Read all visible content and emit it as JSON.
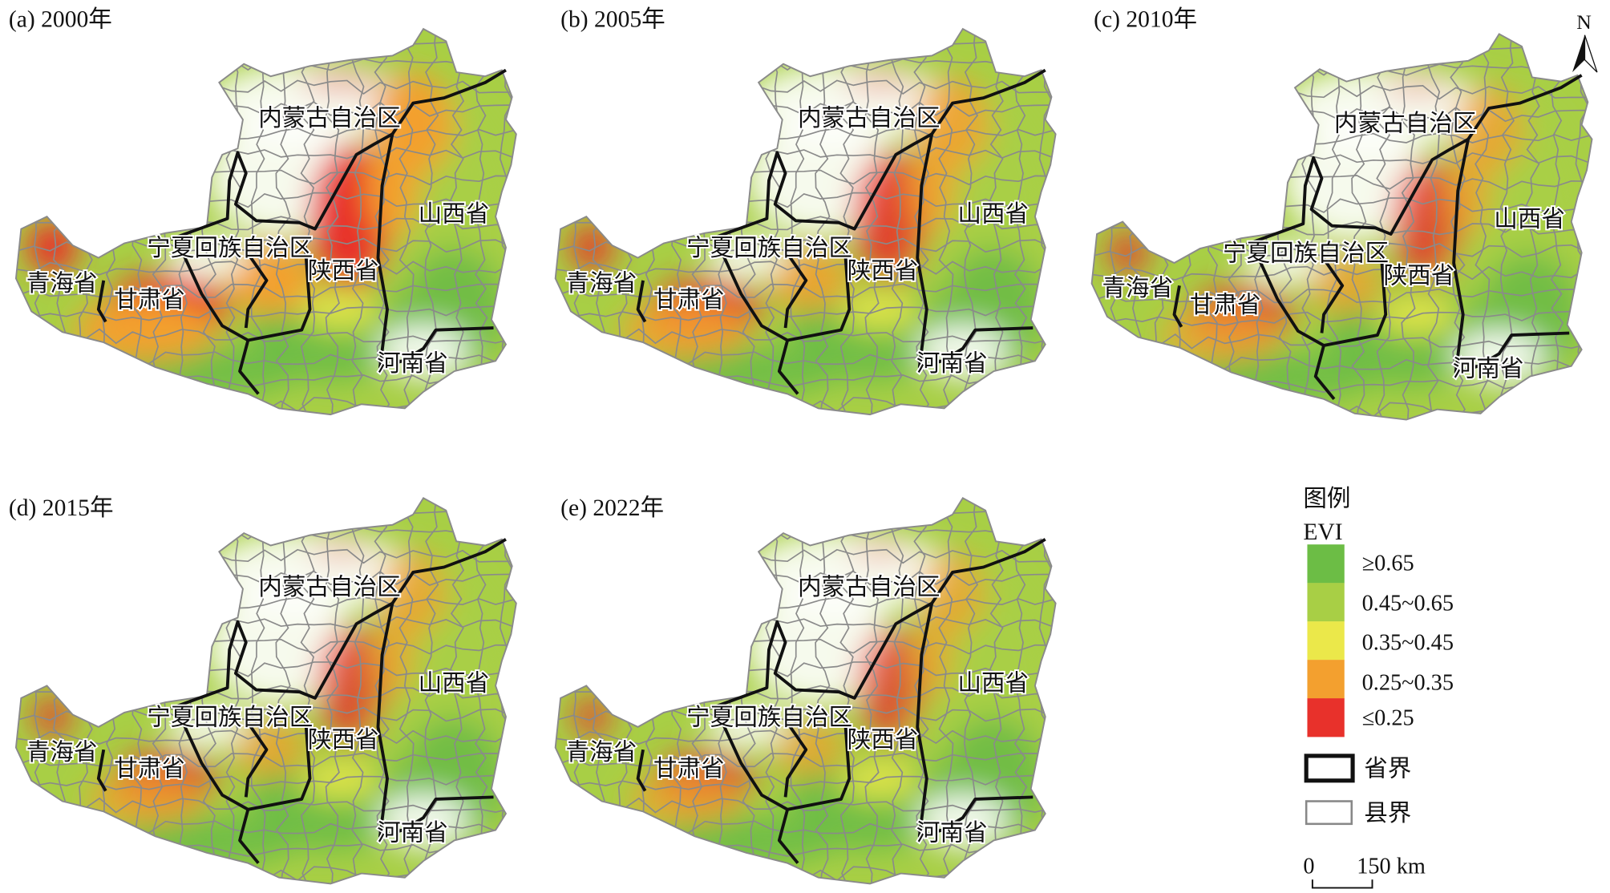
{
  "panels": [
    {
      "label": "(a) 2000年"
    },
    {
      "label": "(b) 2005年"
    },
    {
      "label": "(c) 2010年"
    },
    {
      "label": "(d) 2015年"
    },
    {
      "label": "(e) 2022年"
    }
  ],
  "region_labels": {
    "inner_mongolia": "内蒙古自治区",
    "shanxi": "山西省",
    "ningxia": "宁夏回族自治区",
    "shaanxi": "陕西省",
    "qinghai": "青海省",
    "gansu": "甘肃省",
    "henan": "河南省"
  },
  "north_arrow": {
    "label": "N"
  },
  "legend": {
    "title": "图例",
    "variable": "EVI",
    "classes": [
      {
        "label": "≥0.65",
        "color": "#6cbd45"
      },
      {
        "label": "0.45~0.65",
        "color": "#a8cf45"
      },
      {
        "label": "0.35~0.45",
        "color": "#ebe84a"
      },
      {
        "label": "0.25~0.35",
        "color": "#f3a02f"
      },
      {
        "label": "≤0.25",
        "color": "#e8312b"
      }
    ],
    "province_boundary": "省界",
    "county_boundary": "县界"
  },
  "scale_bar": {
    "start": "0",
    "end": "150 km"
  }
}
